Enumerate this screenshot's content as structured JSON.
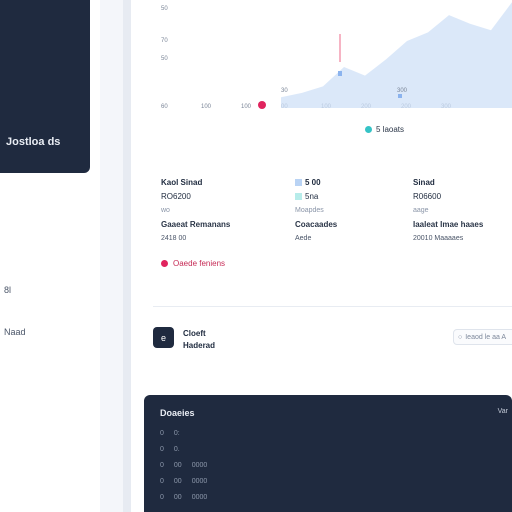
{
  "sidebar": {
    "card_title": "Jostloa ds",
    "items": [
      {
        "label": "8l"
      },
      {
        "label": "Naad"
      }
    ]
  },
  "chart": {
    "y_ticks": [
      "50",
      "70",
      "50"
    ],
    "x_ticks": [
      "60",
      "100",
      "100",
      "00",
      "100",
      "200",
      "200",
      "300"
    ],
    "peak_label": "30",
    "point_label": "300",
    "legend": "5 laoats"
  },
  "chart_data": {
    "type": "area",
    "x": [
      0,
      1,
      2,
      3,
      4,
      5,
      6,
      7,
      8,
      9,
      10,
      11
    ],
    "values": [
      10,
      14,
      20,
      38,
      30,
      45,
      62,
      70,
      86,
      78,
      72,
      98
    ],
    "series": [
      {
        "name": "5 laoats",
        "values": [
          10,
          14,
          20,
          38,
          30,
          45,
          62,
          70,
          86,
          78,
          72,
          98
        ]
      }
    ],
    "ylim": [
      0,
      100
    ],
    "colors": [
      "#cfe0f7",
      "#35c3c6",
      "#e0245e"
    ]
  },
  "stats": {
    "col1": {
      "key": "Kaol Sinad",
      "value": "RO6200",
      "meta": "wo",
      "head": "Gaaeat Remanans",
      "sub": "2418 00"
    },
    "col2": {
      "key": "5 00",
      "value": "5na",
      "meta": "Moapdes",
      "head": "Coacaades",
      "sub": "Aede"
    },
    "col3": {
      "key": "Sinad",
      "value": "R06600",
      "meta": "aage",
      "head": "Iaaleat Imae haaes",
      "sub": "20010 Maaaaes"
    }
  },
  "alert": {
    "label": "Oaede feniens"
  },
  "widget": {
    "icon": "e",
    "line1": "Cloeft",
    "line2": "Haderad",
    "search": "Ieaod le aa A"
  },
  "bottom": {
    "title": "Doaeies",
    "right": "Var",
    "rows": [
      {
        "a": "0",
        "b": "0:"
      },
      {
        "a": "0",
        "b": "0."
      },
      {
        "a": "0",
        "b": "00",
        "c": "0000"
      },
      {
        "a": "0",
        "b": "00",
        "c": "0000"
      },
      {
        "a": "0",
        "b": "00",
        "c": "0000"
      }
    ]
  }
}
